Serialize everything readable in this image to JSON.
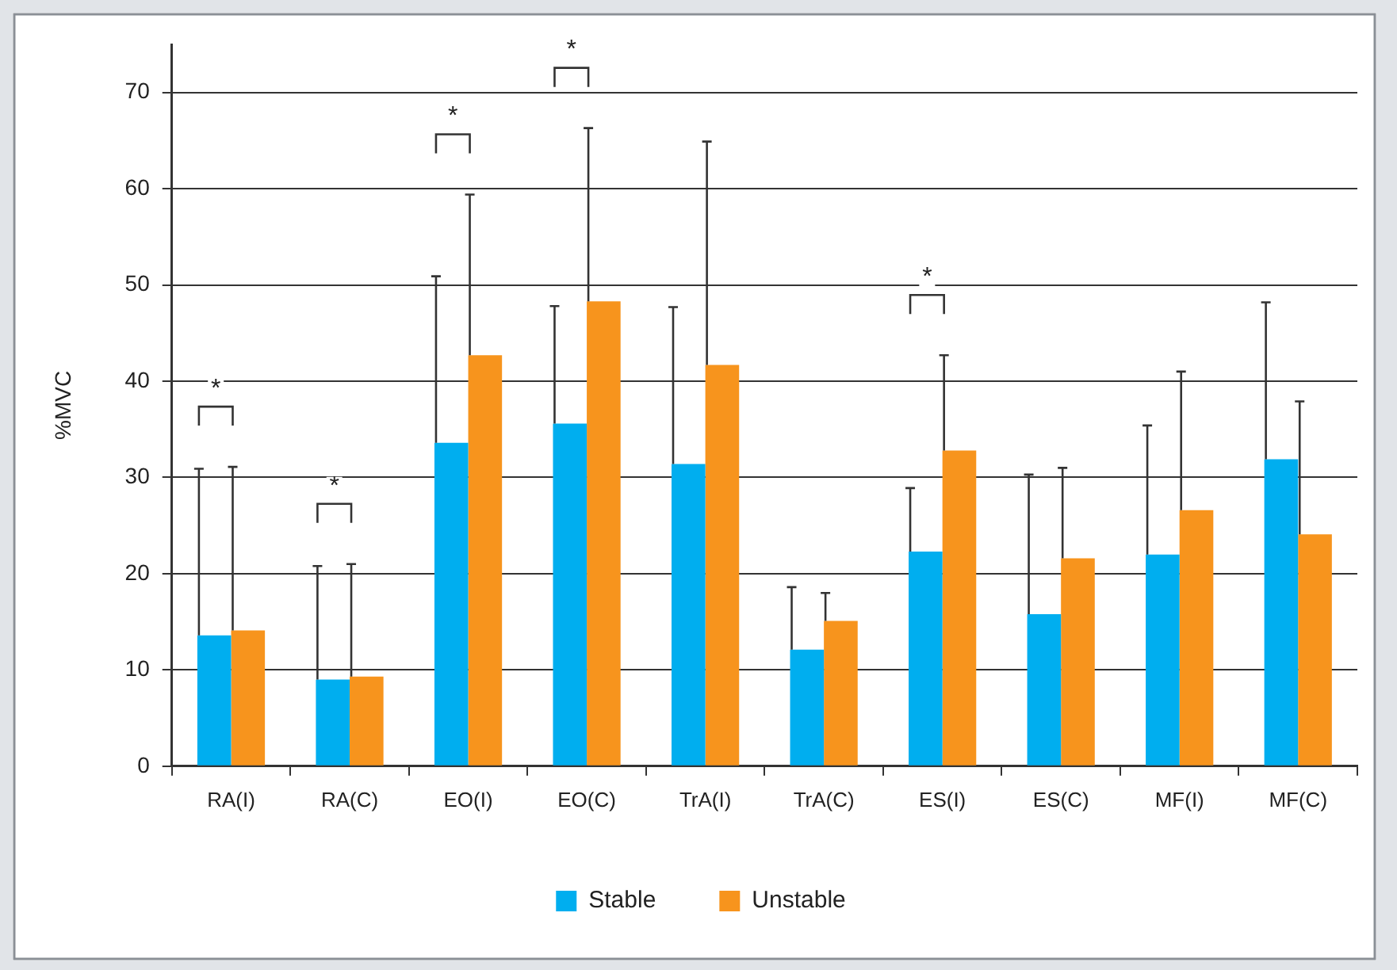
{
  "chart_data": {
    "type": "bar",
    "ylabel": "%MVC",
    "categories": [
      "RA(I)",
      "RA(C)",
      "EO(I)",
      "EO(C)",
      "TrA(I)",
      "TrA(C)",
      "ES(I)",
      "ES(C)",
      "MF(I)",
      "MF(C)"
    ],
    "series": [
      {
        "name": "Stable",
        "color": "#00aeef",
        "values": [
          13.6,
          9.0,
          33.6,
          35.6,
          31.4,
          12.1,
          22.3,
          15.8,
          22.0,
          31.9
        ],
        "errors": [
          [
            13.6,
            30.9
          ],
          [
            9.0,
            20.8
          ],
          [
            33.6,
            50.9
          ],
          [
            35.6,
            47.8
          ],
          [
            31.4,
            47.7
          ],
          [
            12.1,
            18.6
          ],
          [
            22.3,
            28.9
          ],
          [
            15.8,
            30.3
          ],
          [
            22.0,
            35.4
          ],
          [
            31.9,
            48.2
          ]
        ]
      },
      {
        "name": "Unstable",
        "color": "#f7941d",
        "values": [
          14.1,
          9.3,
          42.7,
          48.3,
          41.7,
          15.1,
          32.8,
          21.6,
          26.6,
          24.1
        ],
        "errors": [
          [
            14.1,
            31.1
          ],
          [
            9.3,
            21.0
          ],
          [
            42.7,
            59.4
          ],
          [
            48.3,
            66.3
          ],
          [
            41.7,
            64.9
          ],
          [
            15.1,
            18.0
          ],
          [
            32.8,
            42.7
          ],
          [
            21.6,
            31.0
          ],
          [
            26.6,
            41.0
          ],
          [
            24.1,
            37.9
          ]
        ]
      }
    ],
    "annotations": [
      "*",
      "*",
      "*",
      "*",
      "*"
    ],
    "ylim": [
      0,
      75
    ],
    "yticks": [
      0,
      10,
      20,
      30,
      40,
      50,
      60,
      70
    ],
    "grid": "y",
    "legend": "bottom"
  }
}
